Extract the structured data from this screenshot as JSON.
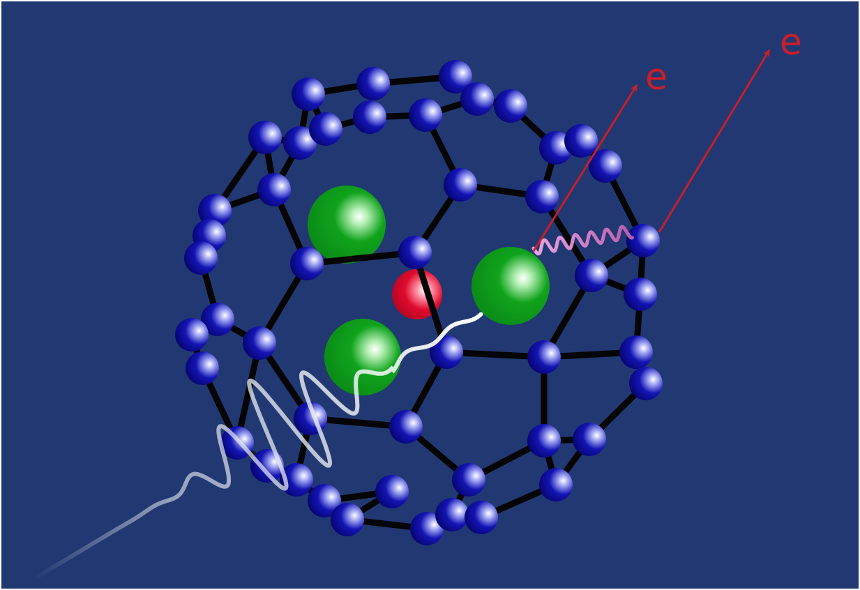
{
  "labels": {
    "electron_1": "e",
    "electron_2": "e"
  },
  "colors": {
    "background": "#223872",
    "cage_bond": "#050505",
    "carbon_atom": "#08088f",
    "dopant_atom": "#0a9a1a",
    "central_atom": "#d80a2a",
    "electron_arrow": "#c81f28",
    "incoming_wave": "#dfe6f0",
    "emitted_wave": "#d98ed4"
  },
  "icons": {
    "carbon_atom": "blue-sphere",
    "dopant_atom": "green-sphere",
    "central_atom": "red-sphere",
    "photon": "sine-wave",
    "electron_path": "arrow"
  }
}
